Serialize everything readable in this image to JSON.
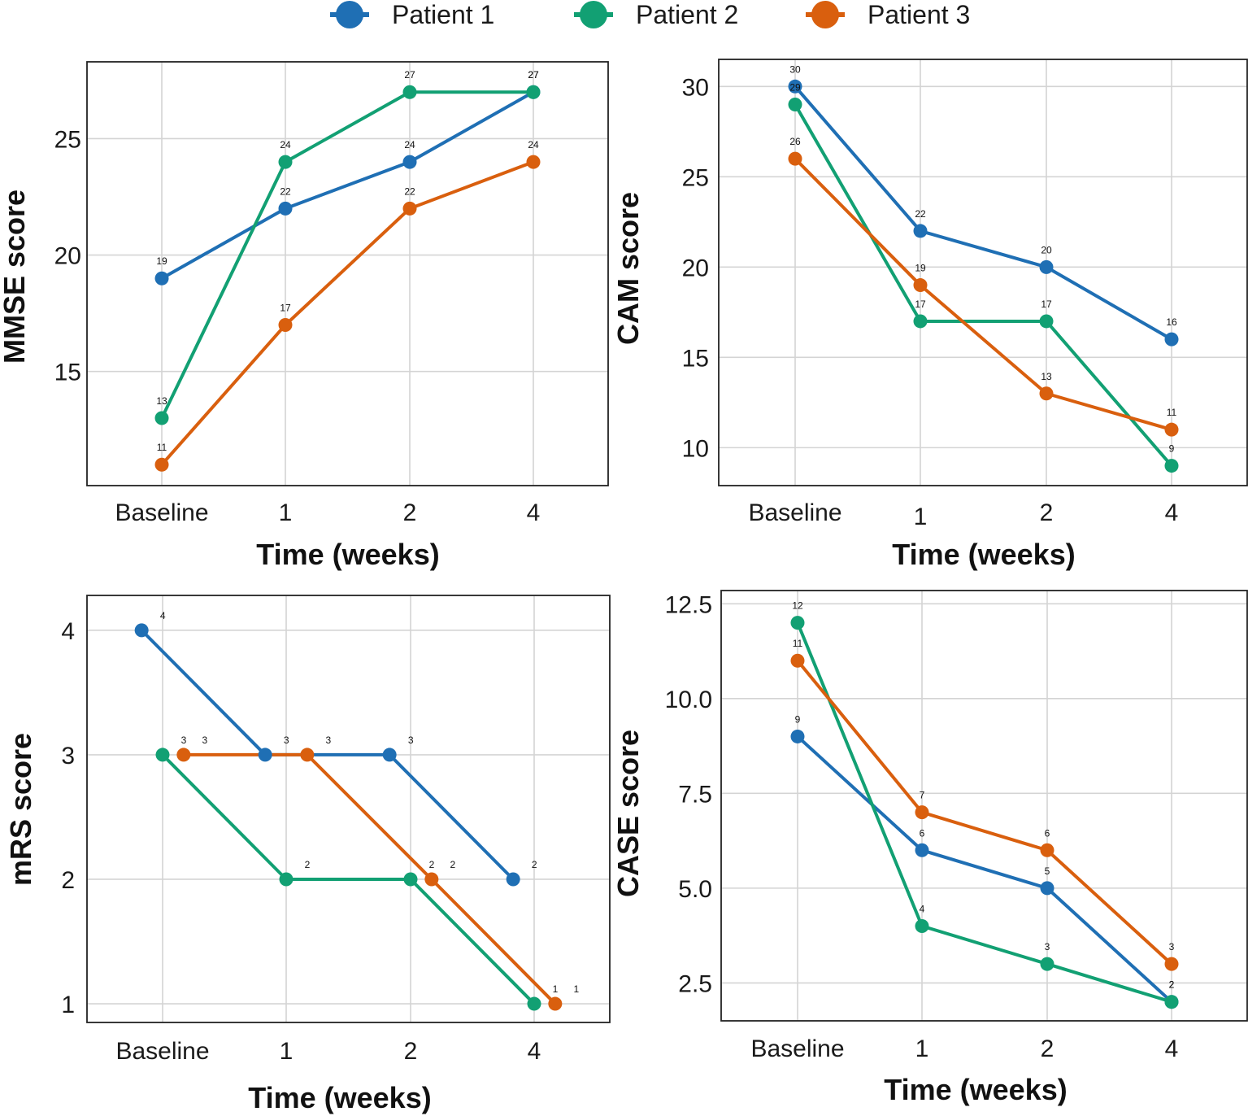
{
  "legend": [
    {
      "name": "Patient 1",
      "color": "#1f6fb4"
    },
    {
      "name": "Patient 2",
      "color": "#12a073"
    },
    {
      "name": "Patient 3",
      "color": "#d95f0e"
    }
  ],
  "chart_data": [
    {
      "type": "line",
      "categories": [
        "Baseline",
        "1",
        "2",
        "4"
      ],
      "xlabel": "Time (weeks)",
      "ylabel": "MMSE score",
      "ylim": [
        10.1,
        28.3
      ],
      "yticks": [
        15,
        20,
        25
      ],
      "ytick_labels": [
        "15",
        "20",
        "25"
      ],
      "grid": true,
      "series": [
        {
          "name": "Patient 1",
          "values": [
            19,
            22,
            24,
            27
          ]
        },
        {
          "name": "Patient 2",
          "values": [
            13,
            24,
            27,
            27
          ]
        },
        {
          "name": "Patient 3",
          "values": [
            11,
            17,
            22,
            24
          ]
        }
      ]
    },
    {
      "type": "line",
      "categories": [
        "Baseline",
        "1",
        "2",
        "4"
      ],
      "xlabel": "Time (weeks)",
      "ylabel": "CAM score",
      "ylim": [
        7.9,
        31.5
      ],
      "yticks": [
        10,
        15,
        20,
        25,
        30
      ],
      "ytick_labels": [
        "10",
        "15",
        "20",
        "25",
        "30"
      ],
      "grid": true,
      "series": [
        {
          "name": "Patient 1",
          "values": [
            30,
            22,
            20,
            16
          ]
        },
        {
          "name": "Patient 2",
          "values": [
            29,
            17,
            17,
            9
          ]
        },
        {
          "name": "Patient 3",
          "values": [
            26,
            19,
            13,
            11
          ]
        }
      ]
    },
    {
      "type": "line",
      "categories": [
        "Baseline",
        "1",
        "2",
        "4"
      ],
      "xlabel": "Time (weeks)",
      "ylabel": "mRS score",
      "ylim": [
        0.85,
        4.28
      ],
      "yticks": [
        1,
        2,
        3,
        4
      ],
      "ytick_labels": [
        "1",
        "2",
        "3",
        "4"
      ],
      "grid": true,
      "dodge": [
        -0.17,
        0,
        0.17
      ],
      "series": [
        {
          "name": "Patient 1",
          "values": [
            4,
            3,
            3,
            2
          ]
        },
        {
          "name": "Patient 2",
          "values": [
            3,
            2,
            2,
            1
          ]
        },
        {
          "name": "Patient 3",
          "values": [
            3,
            3,
            2,
            1
          ]
        }
      ]
    },
    {
      "type": "line",
      "categories": [
        "Baseline",
        "1",
        "2",
        "4"
      ],
      "xlabel": "Time (weeks)",
      "ylabel": "CASE score",
      "ylim": [
        1.5,
        12.85
      ],
      "yticks": [
        2.5,
        5,
        7.5,
        10,
        12.5
      ],
      "ytick_labels": [
        "2.5",
        "5.0",
        "7.5",
        "10.0",
        "12.5"
      ],
      "grid": true,
      "series": [
        {
          "name": "Patient 1",
          "values": [
            9,
            6,
            5,
            2
          ]
        },
        {
          "name": "Patient 2",
          "values": [
            12,
            4,
            3,
            2
          ]
        },
        {
          "name": "Patient 3",
          "values": [
            11,
            7,
            6,
            3
          ]
        }
      ]
    }
  ]
}
